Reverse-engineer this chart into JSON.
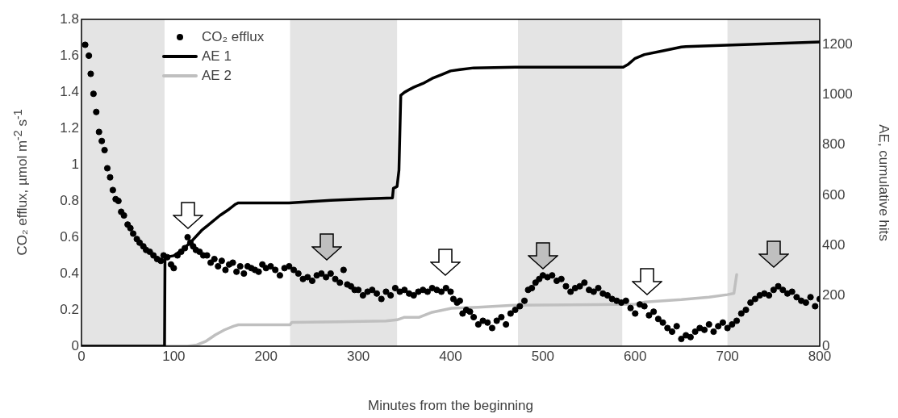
{
  "chart_data": {
    "type": "scatter",
    "xlabel": "Minutes from the beginning",
    "ylabel": "CO₂ efflux, µmol m$^{-2}$ s$^{-1}$",
    "y2label": "AE, cumulative hits",
    "xlim": [
      0,
      800
    ],
    "xticks": [
      0,
      100,
      200,
      300,
      400,
      500,
      600,
      700,
      800
    ],
    "ylim": [
      0,
      1.8
    ],
    "yticks": [
      0,
      0.2,
      0.4,
      0.6,
      0.8,
      {
        "value": 1,
        "label": "1"
      },
      1.2,
      1.4,
      1.6,
      1.8
    ],
    "y2lim": [
      0,
      1300
    ],
    "y2ticks": [
      0,
      200,
      400,
      600,
      800,
      1000,
      1200
    ],
    "grid": false,
    "legend": "top left",
    "bands": [
      {
        "axis": "x",
        "from": 0,
        "to": 90,
        "color": "#e4e4e4"
      },
      {
        "axis": "x",
        "from": 226,
        "to": 342,
        "color": "#e4e4e4"
      },
      {
        "axis": "x",
        "from": 473,
        "to": 586,
        "color": "#e4e4e4"
      },
      {
        "axis": "x",
        "from": 700,
        "to": 800,
        "color": "#e4e4e4"
      }
    ],
    "series": [
      {
        "name": "CO₂ efflux",
        "marker": "circle",
        "color": "#000000",
        "x": [
          4,
          8,
          10,
          13,
          16,
          19,
          22,
          25,
          28,
          31,
          34,
          37,
          40,
          43,
          46,
          50,
          53,
          56,
          60,
          63,
          67,
          70,
          74,
          78,
          82,
          86,
          89,
          93,
          97,
          100,
          104,
          108,
          112,
          115,
          118,
          121,
          124,
          128,
          132,
          136,
          140,
          144,
          148,
          152,
          156,
          160,
          164,
          168,
          172,
          176,
          180,
          184,
          188,
          192,
          196,
          200,
          205,
          210,
          215,
          220,
          225,
          230,
          235,
          240,
          245,
          250,
          255,
          260,
          265,
          270,
          275,
          280,
          284,
          288,
          292,
          296,
          300,
          305,
          310,
          315,
          320,
          325,
          330,
          335,
          340,
          345,
          350,
          355,
          360,
          365,
          370,
          375,
          380,
          385,
          390,
          395,
          400,
          403,
          407,
          410,
          413,
          417,
          421,
          425,
          430,
          435,
          440,
          445,
          450,
          455,
          460,
          465,
          470,
          475,
          480,
          484,
          488,
          492,
          496,
          500,
          505,
          510,
          515,
          520,
          525,
          530,
          535,
          540,
          545,
          550,
          555,
          560,
          565,
          570,
          575,
          580,
          585,
          590,
          595,
          600,
          605,
          610,
          615,
          620,
          625,
          630,
          635,
          640,
          645,
          650,
          655,
          660,
          665,
          670,
          675,
          680,
          685,
          690,
          695,
          700,
          705,
          710,
          715,
          720,
          725,
          730,
          735,
          740,
          745,
          750,
          755,
          760,
          765,
          770,
          775,
          780,
          785,
          790,
          795,
          800
        ],
        "values": [
          1.66,
          1.6,
          1.5,
          1.39,
          1.29,
          1.18,
          1.13,
          1.08,
          0.98,
          0.93,
          0.86,
          0.81,
          0.8,
          0.74,
          0.72,
          0.67,
          0.65,
          0.62,
          0.59,
          0.57,
          0.55,
          0.53,
          0.52,
          0.5,
          0.48,
          0.47,
          0.5,
          0.49,
          0.45,
          0.43,
          0.5,
          0.52,
          0.54,
          0.6,
          0.57,
          0.55,
          0.53,
          0.52,
          0.5,
          0.5,
          0.46,
          0.48,
          0.44,
          0.47,
          0.42,
          0.45,
          0.46,
          0.41,
          0.44,
          0.4,
          0.44,
          0.43,
          0.42,
          0.41,
          0.45,
          0.43,
          0.44,
          0.42,
          0.39,
          0.43,
          0.44,
          0.42,
          0.4,
          0.37,
          0.38,
          0.36,
          0.39,
          0.4,
          0.38,
          0.4,
          0.37,
          0.35,
          0.42,
          0.34,
          0.33,
          0.31,
          0.31,
          0.28,
          0.3,
          0.31,
          0.29,
          0.26,
          0.3,
          0.28,
          0.32,
          0.3,
          0.31,
          0.29,
          0.28,
          0.3,
          0.31,
          0.3,
          0.32,
          0.31,
          0.3,
          0.32,
          0.3,
          0.26,
          0.24,
          0.25,
          0.18,
          0.2,
          0.19,
          0.16,
          0.12,
          0.14,
          0.13,
          0.1,
          0.14,
          0.16,
          0.12,
          0.18,
          0.2,
          0.22,
          0.25,
          0.31,
          0.32,
          0.35,
          0.37,
          0.39,
          0.38,
          0.39,
          0.36,
          0.37,
          0.33,
          0.3,
          0.32,
          0.33,
          0.35,
          0.31,
          0.3,
          0.32,
          0.29,
          0.28,
          0.26,
          0.25,
          0.24,
          0.25,
          0.21,
          0.18,
          0.23,
          0.22,
          0.17,
          0.19,
          0.15,
          0.13,
          0.1,
          0.08,
          0.11,
          0.04,
          0.06,
          0.05,
          0.08,
          0.1,
          0.09,
          0.12,
          0.08,
          0.11,
          0.13,
          0.1,
          0.12,
          0.14,
          0.18,
          0.2,
          0.24,
          0.26,
          0.28,
          0.29,
          0.28,
          0.31,
          0.33,
          0.31,
          0.29,
          0.3,
          0.27,
          0.25,
          0.24,
          0.27,
          0.22,
          0.26
        ]
      },
      {
        "name": "AE 1",
        "type": "line",
        "axis": "y2",
        "marker": "none",
        "line_style": "solid",
        "color": "#000000",
        "x": [
          0,
          90,
          90.5,
          93,
          100,
          110,
          120,
          130,
          140,
          150,
          160,
          167,
          170,
          225,
          270,
          300,
          337,
          338,
          342,
          344,
          346,
          350,
          360,
          370,
          380,
          390,
          400,
          410,
          425,
          470,
          587,
          592,
          600,
          610,
          630,
          650,
          655,
          800
        ],
        "values": [
          0,
          0,
          350,
          355,
          360,
          385,
          420,
          460,
          490,
          520,
          545,
          565,
          570,
          570,
          580,
          585,
          590,
          628,
          635,
          700,
          998,
          1010,
          1030,
          1045,
          1065,
          1080,
          1095,
          1100,
          1107,
          1110,
          1110,
          1120,
          1145,
          1160,
          1175,
          1190,
          1192,
          1210
        ]
      },
      {
        "name": "AE 2",
        "type": "line",
        "axis": "y2",
        "marker": "none",
        "line_style": "solid",
        "color": "#bfbfbf",
        "x": [
          0,
          115,
          125,
          135,
          145,
          155,
          165,
          170,
          226,
          228,
          280,
          330,
          342,
          350,
          366,
          380,
          401,
          430,
          468,
          560,
          600,
          611,
          650,
          680,
          700,
          707,
          710
        ],
        "values": [
          0,
          0,
          5,
          20,
          45,
          65,
          80,
          85,
          85,
          95,
          97,
          100,
          105,
          115,
          115,
          135,
          151,
          155,
          163,
          165,
          167,
          176,
          185,
          195,
          205,
          210,
          285
        ]
      }
    ]
  }
}
